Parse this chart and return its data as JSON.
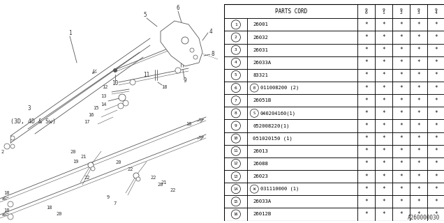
{
  "figure_code": "A260000030",
  "table_rows": [
    [
      "1",
      "26001"
    ],
    [
      "2",
      "26032"
    ],
    [
      "3",
      "26031"
    ],
    [
      "4",
      "26033A"
    ],
    [
      "5",
      "83321"
    ],
    [
      "6",
      "B011008200 (2)"
    ],
    [
      "7",
      "26051B"
    ],
    [
      "8",
      "S040204160(1)"
    ],
    [
      "9",
      "052008220(1)"
    ],
    [
      "10",
      "051020150 (1)"
    ],
    [
      "11",
      "26013"
    ],
    [
      "12",
      "26088"
    ],
    [
      "13",
      "26023"
    ],
    [
      "14",
      "W031110000 (1)"
    ],
    [
      "15",
      "26033A"
    ],
    [
      "16",
      "26012B"
    ]
  ],
  "year_cols": [
    "9\n0",
    "9\n1",
    "9\n2",
    "9\n3",
    "9\n4"
  ],
  "bg_color": "#ffffff"
}
